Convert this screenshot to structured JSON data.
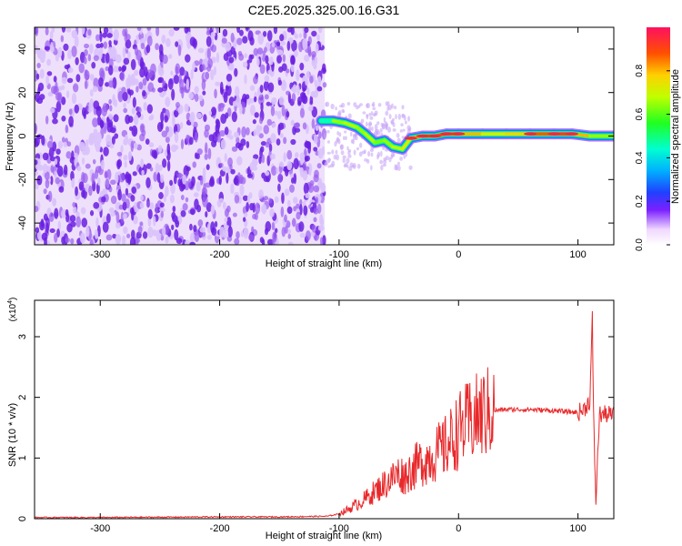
{
  "title": "C2E5.2025.325.00.16.G31",
  "colors": {
    "spectrum_scatter": "#7a2ee6",
    "spectrum_track_hot": "#ff2020",
    "spectrum_track_warm": "#30ff40",
    "spectrum_track_cool": "#2060ff",
    "snr_line": "#e8282a",
    "axes": "#000000"
  },
  "chart_data": [
    {
      "type": "heatmap",
      "xlabel": "Height of straight line (km)",
      "ylabel": "Frequency (Hz)",
      "xlim": [
        -355,
        130
      ],
      "ylim": [
        -50,
        50
      ],
      "x_ticks": [
        -300,
        -200,
        -100,
        0,
        100
      ],
      "x_tick_labels": [
        "-300",
        "-200",
        "-100",
        "0",
        "100"
      ],
      "y_ticks": [
        -40,
        -20,
        0,
        20,
        40
      ],
      "y_tick_labels": [
        "-40",
        "-20",
        "0",
        "20",
        "40"
      ],
      "noise_region": {
        "x_from": -355,
        "x_to": -112,
        "y_from": -50,
        "y_to": 50,
        "amplitude": 0.08
      },
      "signal_track": [
        {
          "x": -115,
          "y": 7,
          "amplitude": 0.35
        },
        {
          "x": -105,
          "y": 7,
          "amplitude": 0.55
        },
        {
          "x": -95,
          "y": 6,
          "amplitude": 0.75
        },
        {
          "x": -85,
          "y": 4,
          "amplitude": 0.6
        },
        {
          "x": -78,
          "y": 1,
          "amplitude": 0.7
        },
        {
          "x": -70,
          "y": -3,
          "amplitude": 0.65
        },
        {
          "x": -62,
          "y": -2,
          "amplitude": 0.6
        },
        {
          "x": -55,
          "y": -5,
          "amplitude": 0.7
        },
        {
          "x": -47,
          "y": -6,
          "amplitude": 0.65
        },
        {
          "x": -40,
          "y": -1,
          "amplitude": 0.8
        },
        {
          "x": -30,
          "y": 0,
          "amplitude": 0.85
        },
        {
          "x": -20,
          "y": 0,
          "amplitude": 0.9
        },
        {
          "x": -10,
          "y": 1,
          "amplitude": 0.85
        },
        {
          "x": 0,
          "y": 1,
          "amplitude": 0.9
        },
        {
          "x": 20,
          "y": 1,
          "amplitude": 0.7
        },
        {
          "x": 40,
          "y": 1,
          "amplitude": 0.75
        },
        {
          "x": 60,
          "y": 1,
          "amplitude": 0.8
        },
        {
          "x": 80,
          "y": 1,
          "amplitude": 0.95
        },
        {
          "x": 95,
          "y": 1,
          "amplitude": 0.9
        },
        {
          "x": 110,
          "y": 0,
          "amplitude": 0.7
        },
        {
          "x": 130,
          "y": 0,
          "amplitude": 0.6
        }
      ],
      "colorbar": {
        "label": "Normalized spectral amplitude",
        "ticks": [
          0.0,
          0.2,
          0.4,
          0.6,
          0.8
        ],
        "tick_labels": [
          "0.0",
          "0.2",
          "0.4",
          "0.6",
          "0.8"
        ],
        "range": [
          0,
          1
        ]
      }
    },
    {
      "type": "line",
      "xlabel": "Height of straight line (km)",
      "ylabel": "SNR (10 * v/v)",
      "y_multiplier_label": "(x10",
      "y_multiplier_exponent": "4",
      "y_multiplier_close": ")",
      "xlim": [
        -355,
        130
      ],
      "ylim": [
        0,
        3.6
      ],
      "x_ticks": [
        -300,
        -200,
        -100,
        0,
        100
      ],
      "x_tick_labels": [
        "-300",
        "-200",
        "-100",
        "0",
        "100"
      ],
      "y_ticks": [
        0,
        1,
        2,
        3
      ],
      "y_tick_labels": [
        "0",
        "1",
        "2",
        "3"
      ],
      "series": [
        {
          "x": [
            -355,
            -300,
            -200,
            -150,
            -110,
            -100,
            -90,
            -80,
            -70,
            -60,
            -50,
            -45,
            -40,
            -30,
            -20,
            -10,
            0,
            10,
            20,
            30,
            40,
            60,
            80,
            100,
            105,
            110,
            112,
            113,
            115,
            118,
            125,
            130
          ],
          "y": [
            0.02,
            0.02,
            0.03,
            0.03,
            0.04,
            0.08,
            0.18,
            0.3,
            0.45,
            0.6,
            0.75,
            0.7,
            0.8,
            0.95,
            1.05,
            1.2,
            1.45,
            1.6,
            1.72,
            1.78,
            1.8,
            1.8,
            1.78,
            1.75,
            1.8,
            1.95,
            3.3,
            1.7,
            0.3,
            1.72,
            1.72,
            1.7
          ]
        }
      ]
    }
  ]
}
